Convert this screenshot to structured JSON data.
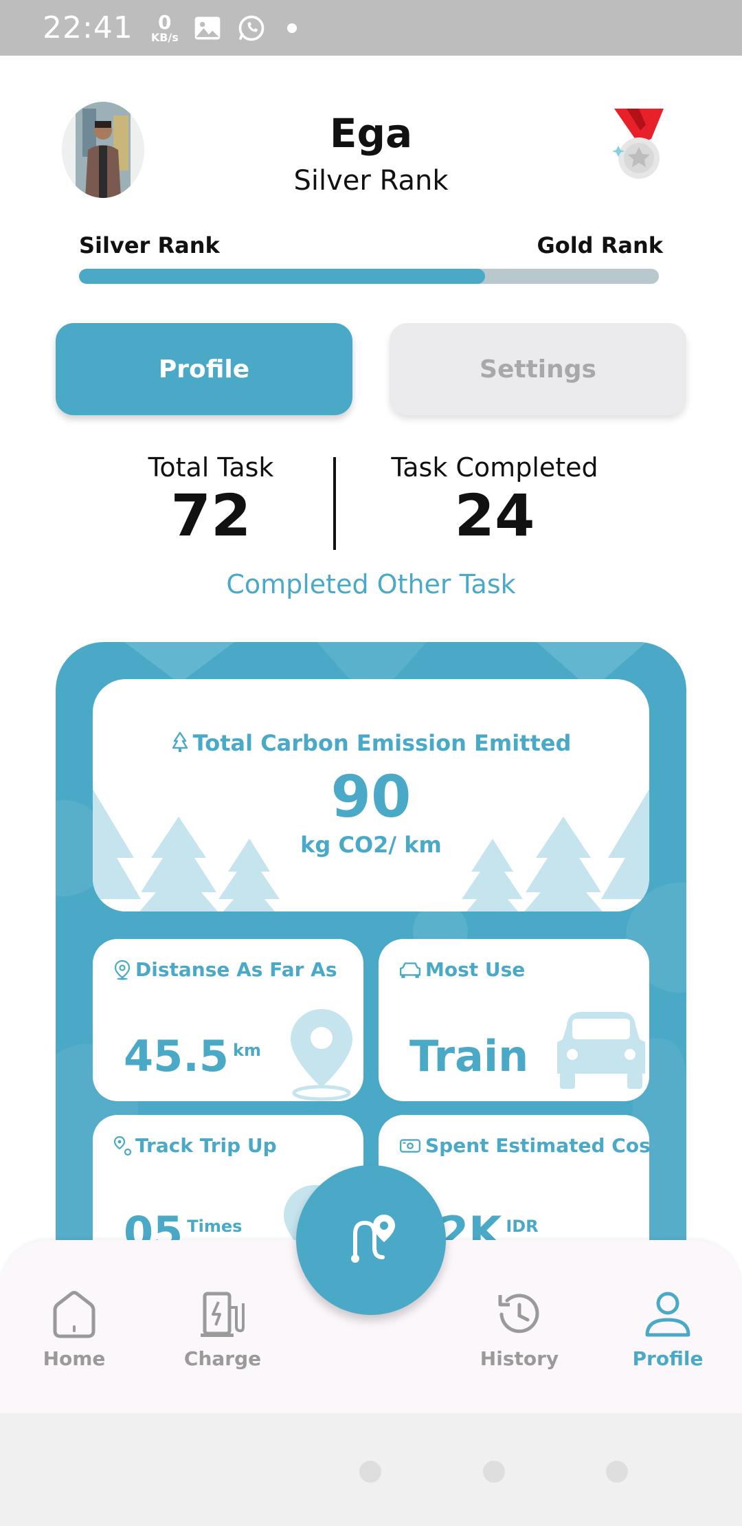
{
  "status_bar": {
    "time": "22:41",
    "net_speed": "0",
    "net_unit": "KB/s",
    "icons": [
      "image-icon",
      "whatsapp-icon",
      "dot-icon"
    ]
  },
  "header": {
    "name": "Ega",
    "rank": "Silver Rank",
    "medal_icon": "medal-icon"
  },
  "rank_progress": {
    "current_label": "Silver Rank",
    "next_label": "Gold Rank",
    "progress_percent": 70
  },
  "tabs": {
    "profile": "Profile",
    "settings": "Settings",
    "active": "profile"
  },
  "stats": {
    "total_task_label": "Total Task",
    "total_task_value": "72",
    "completed_label": "Task Completed",
    "completed_value": "24",
    "link": "Completed Other Task"
  },
  "emission": {
    "title": "Total Carbon Emission Emitted",
    "value": "90",
    "unit": "kg CO2/ km"
  },
  "cards": {
    "distance": {
      "title": "Distanse As Far As",
      "value": "45.5",
      "unit": "km"
    },
    "most_use": {
      "title": "Most Use",
      "value": "Train"
    },
    "trip": {
      "title": "Track Trip Up",
      "value": "05",
      "unit": "Times"
    },
    "cost": {
      "title": "Spent Estimated Cost",
      "value": "12K",
      "unit": "IDR"
    }
  },
  "bottom_nav": {
    "home": "Home",
    "charge": "Charge",
    "history": "History",
    "profile": "Profile",
    "active": "profile"
  },
  "colors": {
    "accent": "#4aa9c7",
    "progress_track": "#b9c8cd",
    "tab_inactive": "#ebebee"
  }
}
